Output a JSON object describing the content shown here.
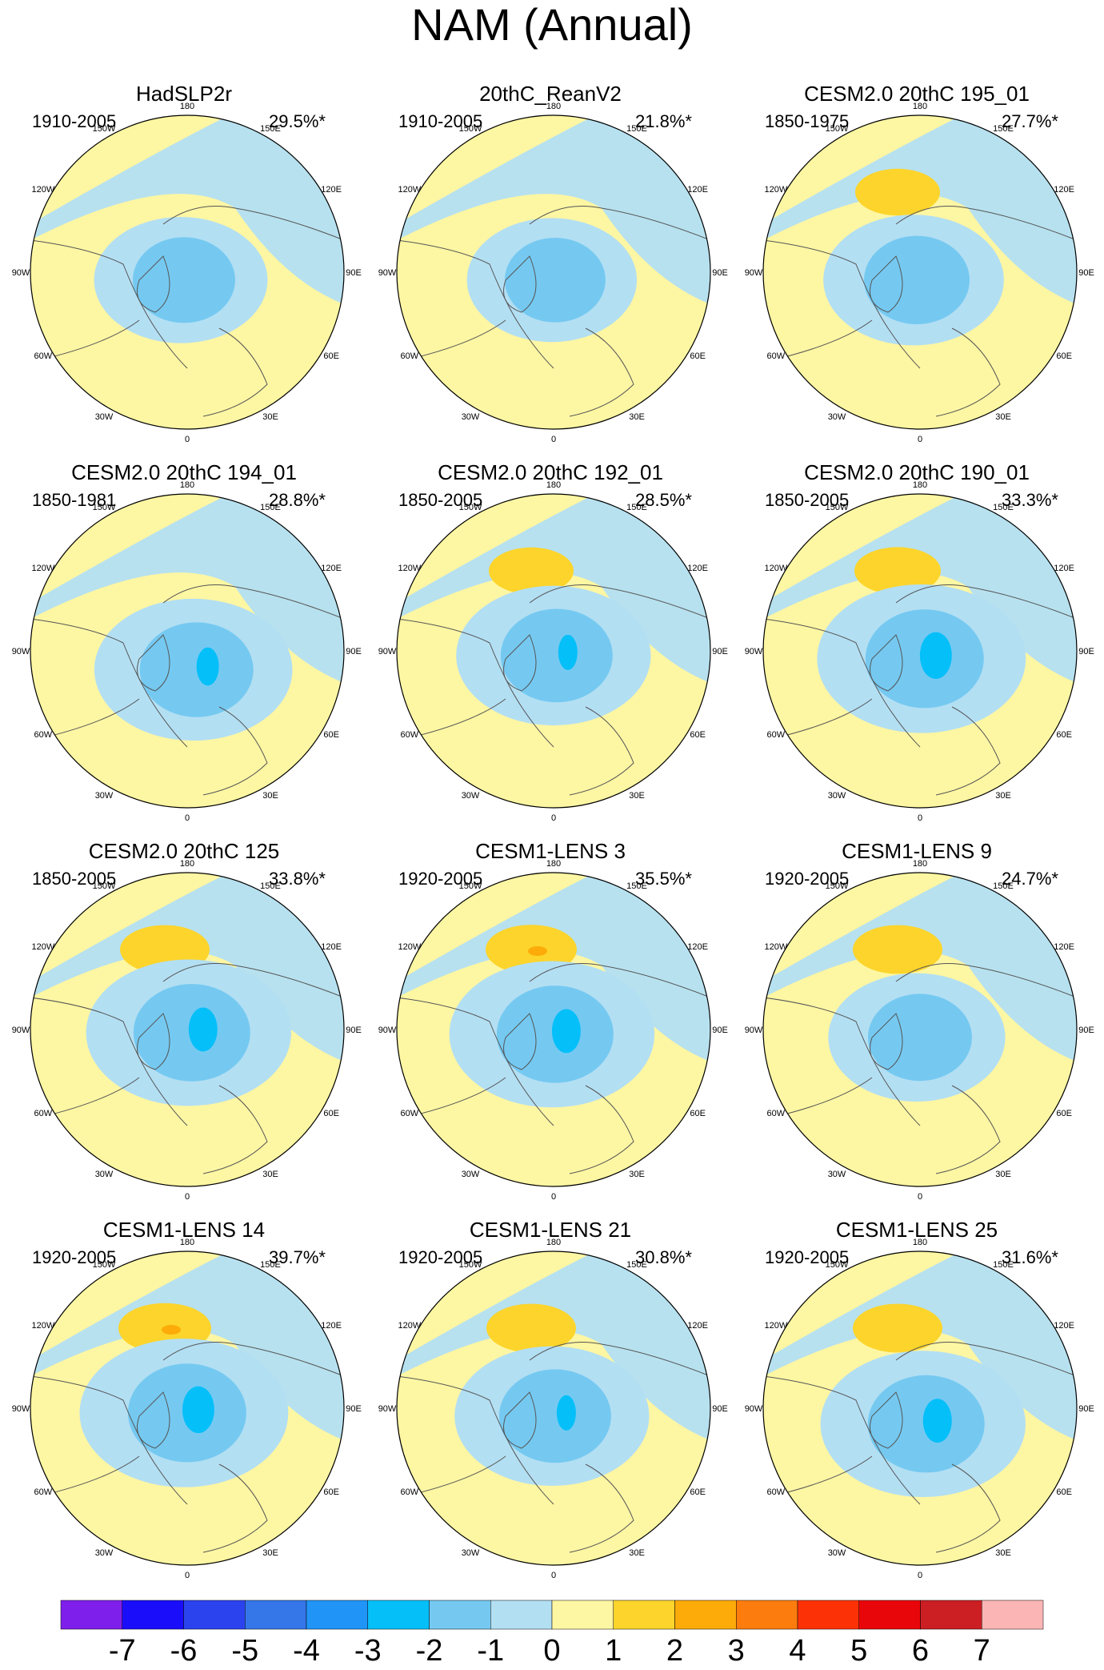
{
  "title": "NAM (Annual)",
  "longitude_labels": [
    "180",
    "150E",
    "120E",
    "90E",
    "60E",
    "30E",
    "0",
    "30W",
    "60W",
    "90W",
    "120W",
    "150W"
  ],
  "panels": [
    {
      "title": "HadSLP2r",
      "years": "1910-2005",
      "pct": "29.5%*",
      "pattern": {
        "pos": 0,
        "pos_peak": 0,
        "neg": 2.2,
        "center": [
          0.0,
          0.05
        ]
      }
    },
    {
      "title": "20thC_ReanV2",
      "years": "1910-2005",
      "pct": "21.8%*",
      "pattern": {
        "pos": 0,
        "pos_peak": 0,
        "neg": 2.1,
        "center": [
          0.03,
          0.05
        ]
      }
    },
    {
      "title": "CESM2.0 20thC 195_01",
      "years": "1850-1975",
      "pct": "27.7%*",
      "pattern": {
        "pos": 1.3,
        "pos_peak": 0,
        "neg": 2.4,
        "center": [
          0.0,
          0.05
        ]
      }
    },
    {
      "title": "CESM2.0 20thC 194_01",
      "years": "1850-1981",
      "pct": "28.8%*",
      "pattern": {
        "pos": 0,
        "pos_peak": 0,
        "neg": 2.9,
        "center": [
          0.08,
          0.12
        ]
      }
    },
    {
      "title": "CESM2.0 20thC 192_01",
      "years": "1850-2005",
      "pct": "28.5%*",
      "pattern": {
        "pos": 1.3,
        "pos_peak": 0,
        "neg": 2.8,
        "center": [
          0.04,
          0.03
        ]
      }
    },
    {
      "title": "CESM2.0 20thC 190_01",
      "years": "1850-2005",
      "pct": "33.3%*",
      "pattern": {
        "pos": 1.4,
        "pos_peak": 0,
        "neg": 3.2,
        "center": [
          0.05,
          0.05
        ]
      }
    },
    {
      "title": "CESM2.0 20thC 125",
      "years": "1850-2005",
      "pct": "33.8%*",
      "pattern": {
        "pos": 1.6,
        "pos_peak": 0,
        "neg": 3.1,
        "center": [
          0.05,
          0.02
        ]
      }
    },
    {
      "title": "CESM1-LENS 3",
      "years": "1920-2005",
      "pct": "35.5%*",
      "pattern": {
        "pos": 1.7,
        "pos_peak": 2.0,
        "neg": 3.1,
        "center": [
          0.03,
          0.03
        ]
      }
    },
    {
      "title": "CESM1-LENS 9",
      "years": "1920-2005",
      "pct": "24.7%*",
      "pattern": {
        "pos": 1.6,
        "pos_peak": 0,
        "neg": 2.3,
        "center": [
          0.02,
          0.05
        ]
      }
    },
    {
      "title": "CESM1-LENS 14",
      "years": "1920-2005",
      "pct": "39.7%*",
      "pattern": {
        "pos": 1.8,
        "pos_peak": 2.0,
        "neg": 3.2,
        "center": [
          0.02,
          0.03
        ]
      }
    },
    {
      "title": "CESM1-LENS 21",
      "years": "1920-2005",
      "pct": "30.8%*",
      "pattern": {
        "pos": 1.6,
        "pos_peak": 0,
        "neg": 2.8,
        "center": [
          0.03,
          0.05
        ]
      }
    },
    {
      "title": "CESM1-LENS 25",
      "years": "1920-2005",
      "pct": "31.6%*",
      "pattern": {
        "pos": 1.6,
        "pos_peak": 0,
        "neg": 3.1,
        "center": [
          0.06,
          0.1
        ]
      }
    }
  ],
  "colorbar": {
    "labels": [
      "-7",
      "-6",
      "-5",
      "-4",
      "-3",
      "-2",
      "-1",
      "0",
      "1",
      "2",
      "3",
      "4",
      "5",
      "6",
      "7"
    ],
    "colors": [
      "#7f1fec",
      "#1a0dfa",
      "#2b43ef",
      "#3576e9",
      "#2095f7",
      "#05bff9",
      "#75c9f1",
      "#b3dff3",
      "#fdf6a3",
      "#fcd42b",
      "#fcab08",
      "#fc7c0e",
      "#fc3206",
      "#e9060a",
      "#cb1f23",
      "#fcb5b5"
    ]
  }
}
